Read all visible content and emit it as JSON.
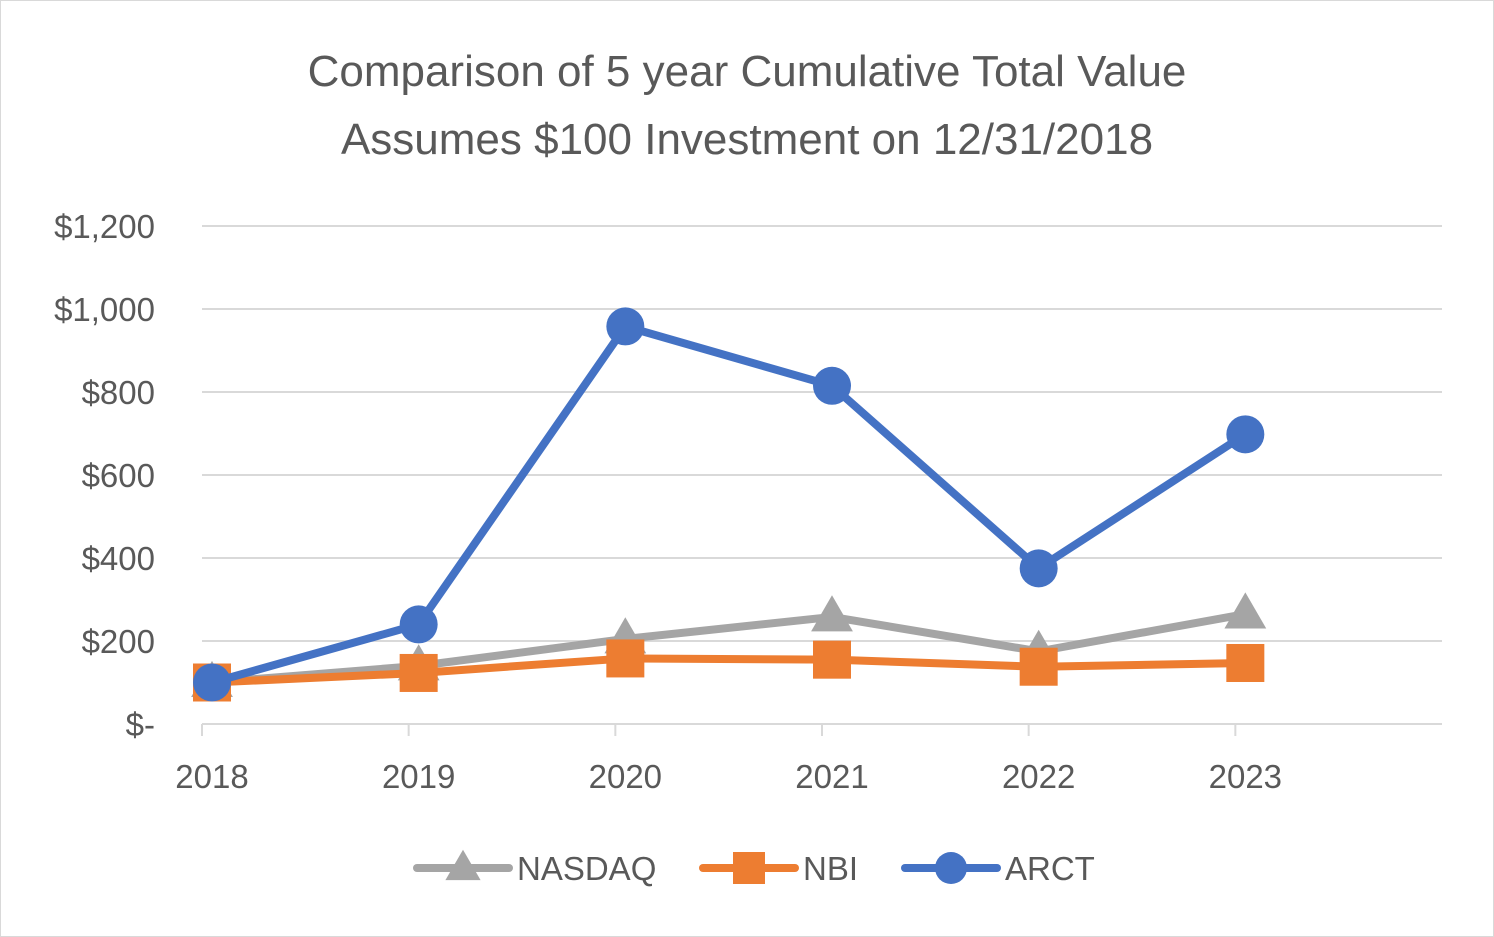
{
  "chart_data": {
    "type": "line",
    "title": "Comparison of 5 year Cumulative Total Value",
    "subtitle": "Assumes $100 Investment on 12/31/2018",
    "categories": [
      "2018",
      "2019",
      "2020",
      "2021",
      "2022",
      "2023"
    ],
    "ylim": [
      0,
      1200
    ],
    "yticks": [
      0,
      200,
      400,
      600,
      800,
      1000,
      1200
    ],
    "ytick_labels": [
      "$-",
      "$200",
      "$400",
      "$600",
      "$800",
      "$1,000",
      "$1,200"
    ],
    "grid": true,
    "legend_position": "bottom",
    "series": [
      {
        "name": "NASDAQ",
        "color": "#a5a5a5",
        "marker": "triangle",
        "values": [
          100,
          140,
          205,
          258,
          175,
          265
        ]
      },
      {
        "name": "NBI",
        "color": "#ed7d31",
        "marker": "square",
        "values": [
          100,
          123,
          158,
          155,
          138,
          147
        ]
      },
      {
        "name": "ARCT",
        "color": "#4472c4",
        "marker": "circle",
        "values": [
          100,
          240,
          958,
          815,
          375,
          698
        ]
      }
    ]
  }
}
